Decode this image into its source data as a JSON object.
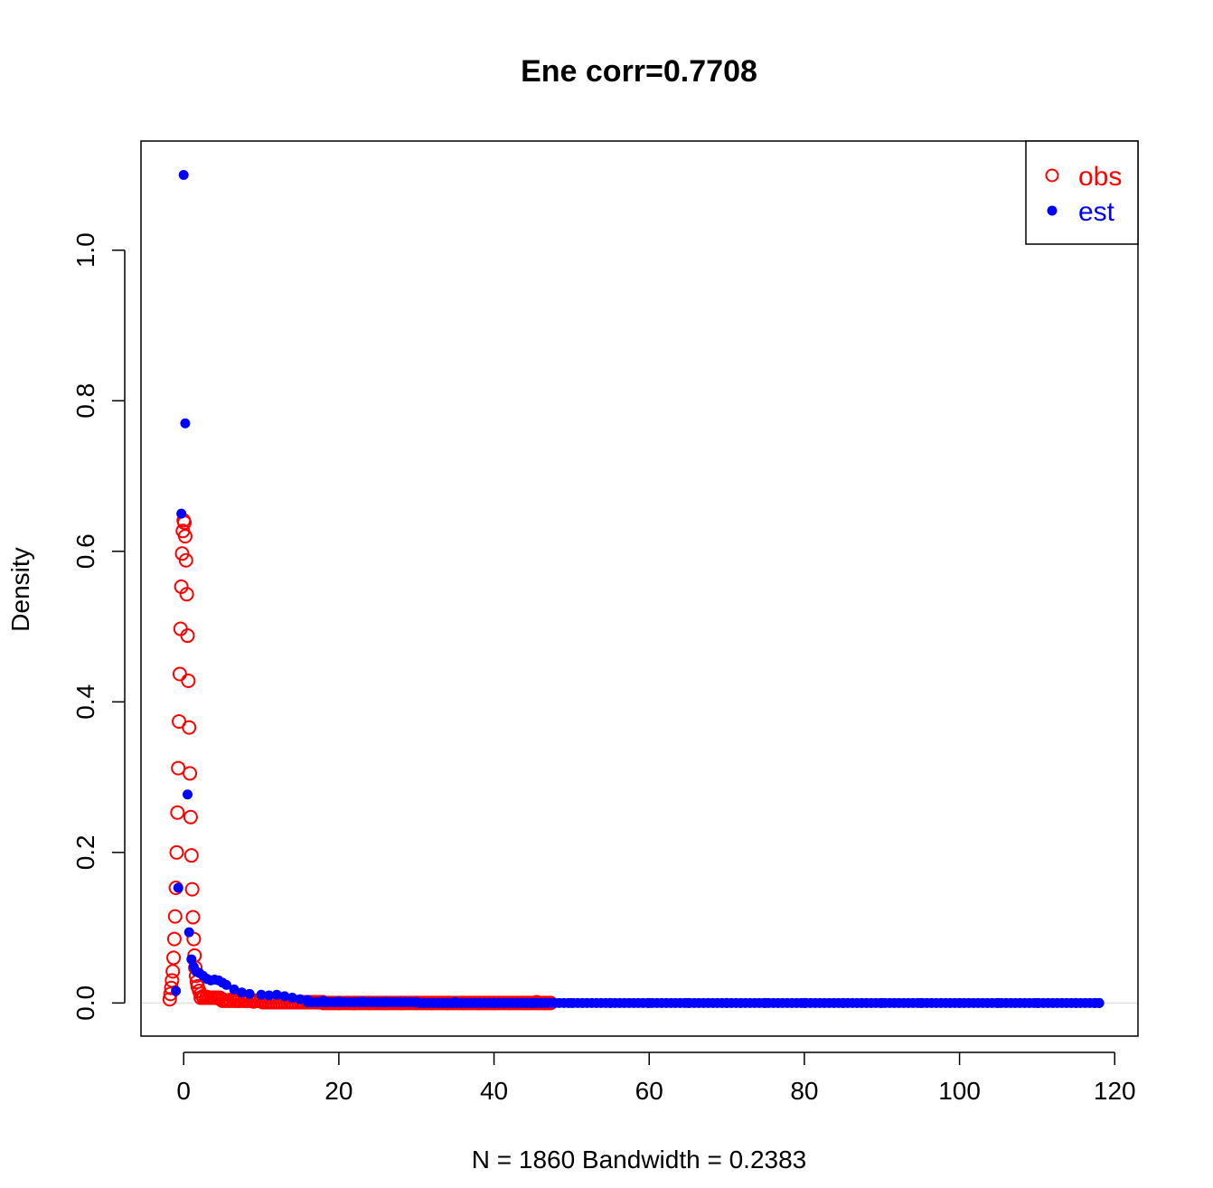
{
  "chart_data": {
    "type": "scatter",
    "title": "Ene corr=0.7708",
    "xlabel": "N = 1860   Bandwidth = 0.2383",
    "ylabel": "Density",
    "xlim": [
      -5.5,
      123
    ],
    "ylim": [
      -0.044,
      1.145
    ],
    "x_ticks": [
      0,
      20,
      40,
      60,
      80,
      100,
      120
    ],
    "y_ticks": [
      0.0,
      0.2,
      0.4,
      0.6,
      0.8,
      1.0
    ],
    "x_tick_labels": [
      "0",
      "20",
      "40",
      "60",
      "80",
      "100",
      "120"
    ],
    "y_tick_labels": [
      "0.0",
      "0.2",
      "0.4",
      "0.6",
      "0.8",
      "1.0"
    ],
    "grid": false,
    "legend": {
      "position": "top-right",
      "entries": [
        {
          "label": "obs",
          "color": "#ff0000",
          "marker": "open-circle"
        },
        {
          "label": "est",
          "color": "#0000ff",
          "marker": "filled-circle"
        }
      ]
    },
    "series": [
      {
        "name": "obs",
        "color": "#ff0000",
        "marker": "open-circle",
        "points": [
          [
            -1.8,
            0.005
          ],
          [
            -1.7,
            0.012
          ],
          [
            -1.6,
            0.02
          ],
          [
            -1.5,
            0.03
          ],
          [
            -1.4,
            0.042
          ],
          [
            -1.3,
            0.06
          ],
          [
            -1.2,
            0.085
          ],
          [
            -1.1,
            0.115
          ],
          [
            -1.0,
            0.153
          ],
          [
            -0.9,
            0.2
          ],
          [
            -0.8,
            0.253
          ],
          [
            -0.7,
            0.312
          ],
          [
            -0.6,
            0.374
          ],
          [
            -0.5,
            0.437
          ],
          [
            -0.4,
            0.497
          ],
          [
            -0.3,
            0.553
          ],
          [
            -0.2,
            0.597
          ],
          [
            -0.1,
            0.627
          ],
          [
            0.0,
            0.641
          ],
          [
            0.1,
            0.638
          ],
          [
            0.2,
            0.62
          ],
          [
            0.3,
            0.588
          ],
          [
            0.4,
            0.543
          ],
          [
            0.5,
            0.488
          ],
          [
            0.6,
            0.428
          ],
          [
            0.7,
            0.366
          ],
          [
            0.8,
            0.305
          ],
          [
            0.9,
            0.247
          ],
          [
            1.0,
            0.196
          ],
          [
            1.1,
            0.151
          ],
          [
            1.2,
            0.114
          ],
          [
            1.3,
            0.085
          ],
          [
            1.4,
            0.063
          ],
          [
            1.5,
            0.047
          ],
          [
            1.6,
            0.036
          ],
          [
            1.7,
            0.028
          ],
          [
            1.8,
            0.022
          ],
          [
            2.0,
            0.016
          ],
          [
            2.2,
            0.012
          ],
          [
            2.5,
            0.009
          ],
          [
            3.0,
            0.008
          ],
          [
            3.5,
            0.007
          ],
          [
            4.0,
            0.007
          ],
          [
            4.5,
            0.006
          ],
          [
            5.0,
            0.005
          ],
          [
            6.0,
            0.004
          ],
          [
            7.0,
            0.003
          ],
          [
            8.0,
            0.003
          ],
          [
            9.0,
            0.002
          ],
          [
            10.0,
            0.002
          ],
          [
            12.0,
            0.001
          ],
          [
            14.0,
            0.001
          ],
          [
            16.0,
            0.001
          ],
          [
            18.0,
            0.0
          ],
          [
            20.0,
            0.0
          ],
          [
            22.0,
            0.0
          ],
          [
            24.0,
            0.0
          ],
          [
            26.0,
            0.0
          ],
          [
            28.0,
            0.0
          ],
          [
            30.0,
            0.0
          ],
          [
            32.0,
            0.0
          ],
          [
            34.0,
            0.0
          ],
          [
            36.0,
            0.0
          ],
          [
            38.0,
            0.0
          ],
          [
            40.0,
            0.0
          ],
          [
            42.0,
            0.0
          ],
          [
            44.0,
            0.0
          ],
          [
            45.5,
            0.001
          ],
          [
            46.5,
            0.0
          ],
          [
            47.3,
            0.0
          ]
        ]
      },
      {
        "name": "est",
        "color": "#0000ff",
        "marker": "filled-circle",
        "points": [
          [
            -1.0,
            0.016
          ],
          [
            -0.7,
            0.153
          ],
          [
            -0.3,
            0.65
          ],
          [
            0.0,
            1.1
          ],
          [
            0.2,
            0.77
          ],
          [
            0.5,
            0.277
          ],
          [
            0.7,
            0.094
          ],
          [
            1.0,
            0.058
          ],
          [
            1.3,
            0.048
          ],
          [
            1.6,
            0.042
          ],
          [
            2.0,
            0.04
          ],
          [
            2.5,
            0.036
          ],
          [
            3.0,
            0.032
          ],
          [
            3.5,
            0.03
          ],
          [
            4.0,
            0.031
          ],
          [
            4.5,
            0.03
          ],
          [
            5.0,
            0.027
          ],
          [
            5.5,
            0.024
          ],
          [
            6.5,
            0.018
          ],
          [
            7.5,
            0.014
          ],
          [
            8.5,
            0.012
          ],
          [
            10.0,
            0.011
          ],
          [
            11.0,
            0.01
          ],
          [
            12.0,
            0.011
          ],
          [
            13.0,
            0.009
          ],
          [
            14.0,
            0.007
          ],
          [
            15.0,
            0.005
          ],
          [
            16.0,
            0.004
          ],
          [
            18.0,
            0.003
          ],
          [
            20.0,
            0.002
          ],
          [
            23.0,
            0.002
          ],
          [
            26.0,
            0.001
          ],
          [
            30.0,
            0.001
          ],
          [
            35.0,
            0.001
          ],
          [
            40.0,
            0.0
          ],
          [
            45.0,
            0.0
          ],
          [
            50.0,
            0.0
          ],
          [
            55.0,
            0.0
          ],
          [
            60.0,
            0.0
          ],
          [
            65.0,
            0.0
          ],
          [
            70.0,
            0.0
          ],
          [
            75.0,
            0.0
          ],
          [
            80.0,
            0.0
          ],
          [
            85.0,
            0.0
          ],
          [
            90.0,
            0.0
          ],
          [
            95.0,
            0.0
          ],
          [
            100.0,
            0.0
          ],
          [
            105.0,
            0.0
          ],
          [
            110.0,
            0.0
          ],
          [
            115.0,
            0.0
          ],
          [
            117.5,
            0.0
          ],
          [
            118.0,
            0.0
          ]
        ]
      }
    ]
  }
}
